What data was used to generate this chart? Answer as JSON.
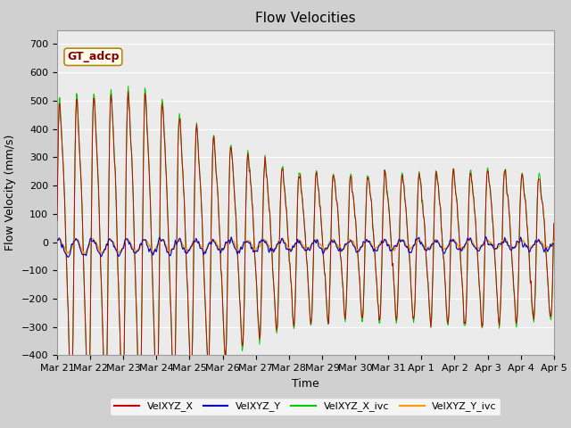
{
  "title": "Flow Velocities",
  "xlabel": "Time",
  "ylabel": "Flow Velocity (mm/s)",
  "ylim": [
    -400,
    750
  ],
  "yticks": [
    -400,
    -300,
    -200,
    -100,
    0,
    100,
    200,
    300,
    400,
    500,
    600,
    700
  ],
  "x_labels": [
    "Mar 21",
    "Mar 22",
    "Mar 23",
    "Mar 24",
    "Mar 25",
    "Mar 26",
    "Mar 27",
    "Mar 28",
    "Mar 29",
    "Mar 30",
    "Mar 31",
    "Apr 1",
    "Apr 2",
    "Apr 3",
    "Apr 4",
    "Apr 5"
  ],
  "n_days": 15,
  "legend_entries": [
    "VelXYZ_X",
    "VelXYZ_Y",
    "VelXYZ_X_ivc",
    "VelXYZ_Y_ivc"
  ],
  "color_red": "#cc0000",
  "color_blue": "#0000cc",
  "color_green": "#00cc00",
  "color_orange": "#ff9900",
  "annotation_text": "GT_adcp",
  "annotation_color": "#8b0000",
  "annotation_bg": "#fffff0",
  "annotation_edge": "#b8860b",
  "fig_bg": "#d0d0d0",
  "plot_bg": "#ebebeb",
  "grid_color": "#ffffff",
  "title_fontsize": 11,
  "label_fontsize": 9,
  "tick_fontsize": 8,
  "legend_fontsize": 8
}
